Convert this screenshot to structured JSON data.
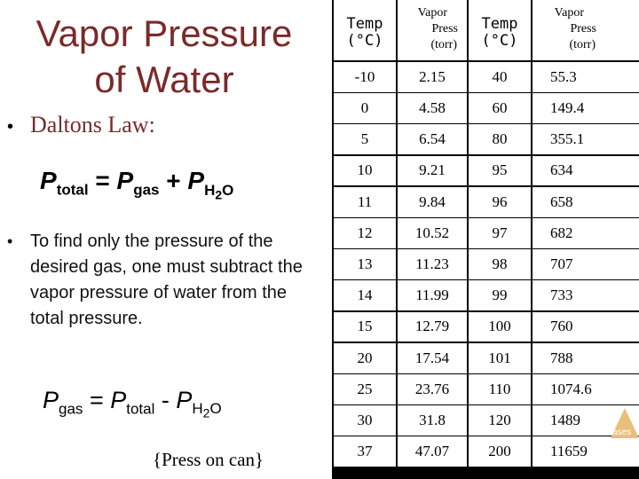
{
  "slide": {
    "title_line1": "Vapor Pressure",
    "title_line2": "of Water",
    "bullet1": "Daltons Law:",
    "bullet_symbol": "•",
    "eq1": {
      "p": "P",
      "sub_total": "total",
      "eq": " = ",
      "p2": "P",
      "sub_gas": "gas",
      "plus": " + ",
      "p3": "P",
      "sub_h2": "H",
      "sub_2": "2",
      "sub_o": "O"
    },
    "bullet2": "To find only the pressure of the desired gas, one must subtract the vapor pressure of water from the total pressure.",
    "eq2": {
      "p": "P",
      "sub_gas": "gas",
      "eq": " = ",
      "p2": "P",
      "sub_total": "total",
      "minus": " - ",
      "p3": "P",
      "sub_h2": "H",
      "sub_2": "2",
      "sub_o": "O"
    },
    "note": "{Press on can}",
    "corner_label": "ases"
  },
  "table": {
    "header": {
      "temp_line1": "Temp",
      "temp_line2": "(°C)",
      "vp_line1": "Vapor",
      "vp_line2": "Press",
      "vp_line3": "(torr)"
    },
    "left": [
      [
        "-10",
        "2.15"
      ],
      [
        "0",
        "4.58"
      ],
      [
        "5",
        "6.54"
      ],
      [
        "10",
        "9.21"
      ],
      [
        "11",
        "9.84"
      ],
      [
        "12",
        "10.52"
      ],
      [
        "13",
        "11.23"
      ],
      [
        "14",
        "11.99"
      ],
      [
        "15",
        "12.79"
      ],
      [
        "20",
        "17.54"
      ],
      [
        "25",
        "23.76"
      ],
      [
        "30",
        "31.8"
      ],
      [
        "37",
        "47.07"
      ]
    ],
    "right": [
      [
        "40",
        "55.3"
      ],
      [
        "60",
        "149.4"
      ],
      [
        "80",
        "355.1"
      ],
      [
        "95",
        "634"
      ],
      [
        "96",
        "658"
      ],
      [
        "97",
        "682"
      ],
      [
        "98",
        "707"
      ],
      [
        "99",
        "733"
      ],
      [
        "100",
        "760"
      ],
      [
        "101",
        "788"
      ],
      [
        "110",
        "1074.6"
      ],
      [
        "120",
        "1489"
      ],
      [
        "200",
        "11659"
      ]
    ]
  }
}
